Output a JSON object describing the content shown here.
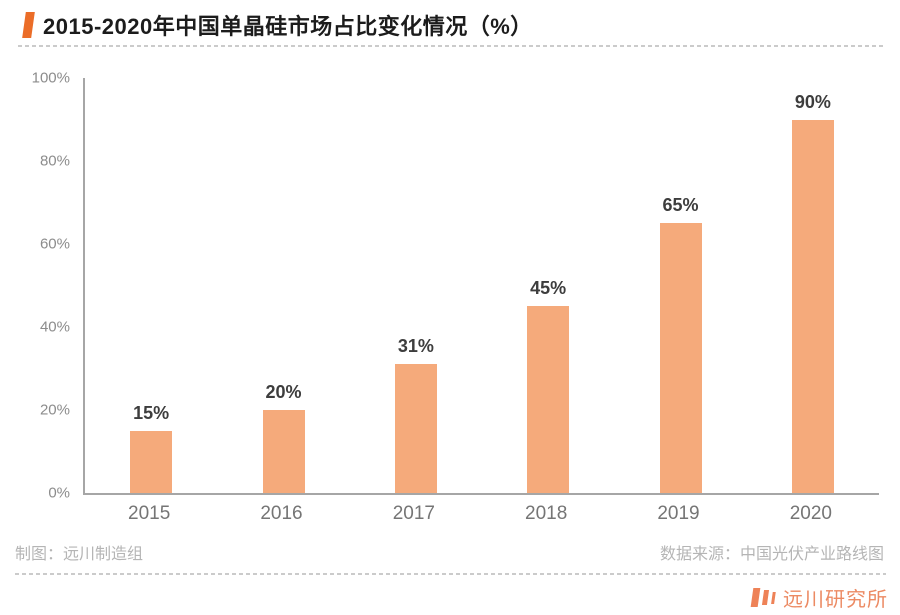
{
  "header": {
    "title": "2015-2020年中国单晶硅市场占比变化情况（%）"
  },
  "chart_data": {
    "type": "bar",
    "title": "2015-2020年中国单晶硅市场占比变化情况（%）",
    "categories": [
      "2015",
      "2016",
      "2017",
      "2018",
      "2019",
      "2020"
    ],
    "values": [
      15,
      20,
      31,
      45,
      65,
      90
    ],
    "value_labels": [
      "15%",
      "20%",
      "31%",
      "45%",
      "65%",
      "90%"
    ],
    "xlabel": "",
    "ylabel": "",
    "ylim": [
      0,
      100
    ],
    "yticks": [
      0,
      20,
      40,
      60,
      80,
      100
    ],
    "ytick_labels": [
      "0%",
      "20%",
      "40%",
      "60%",
      "80%",
      "100%"
    ],
    "grid": false,
    "legend_position": "none",
    "bar_color": "#F5AA7B"
  },
  "footer": {
    "credit_left": "制图：远川制造组",
    "source_right": "数据来源：中国光伏产业路线图",
    "brand": "远川研究所"
  },
  "colors": {
    "title_marker": "#EB6D28",
    "bar_fill": "#F5AA7B",
    "axis_line": "#A6A6A6",
    "tick_text": "#8C8C8C",
    "value_text": "#3D3D3D",
    "credit_text": "#B5B5B5",
    "brand_orange": "#EC8A63",
    "background": "#FFFFFF"
  }
}
